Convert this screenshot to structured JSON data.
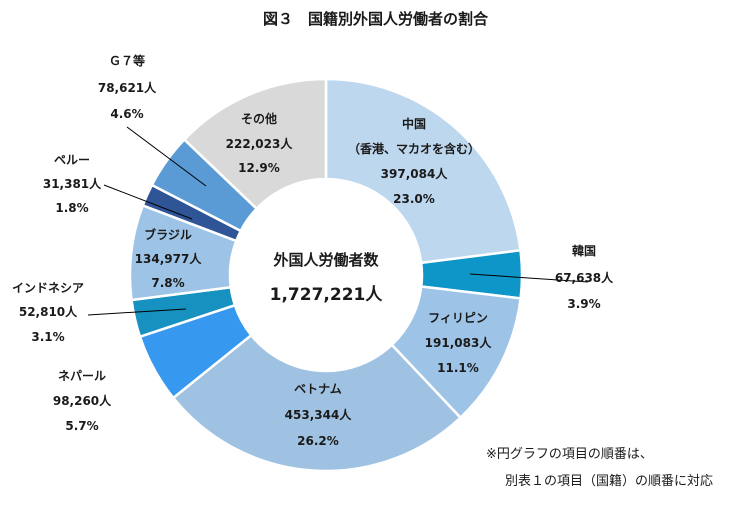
{
  "chart_data": {
    "type": "pie",
    "title": "図３　国籍別外国人労働者の割合",
    "center_label": "外国人労働者数",
    "center_total": "1,727,221人",
    "slices": [
      {
        "name": "中国",
        "name2": "（香港、マカオを含む）",
        "count": "397,084人",
        "pct": "23.0%",
        "value": 397084,
        "color": "#bdd7ee"
      },
      {
        "name": "韓国",
        "count": "67,638人",
        "pct": "3.9%",
        "value": 67638,
        "color": "#0f96c8"
      },
      {
        "name": "フィリピン",
        "count": "191,083人",
        "pct": "11.1%",
        "value": 191083,
        "color": "#9dc3e6"
      },
      {
        "name": "ベトナム",
        "count": "453,344人",
        "pct": "26.2%",
        "value": 453344,
        "color": "#9fc2e3"
      },
      {
        "name": "ネパール",
        "count": "98,260人",
        "pct": "5.7%",
        "value": 98260,
        "color": "#3798f0"
      },
      {
        "name": "インドネシア",
        "count": "52,810人",
        "pct": "3.1%",
        "value": 52810,
        "color": "#1791bf"
      },
      {
        "name": "ブラジル",
        "count": "134,977人",
        "pct": "7.8%",
        "value": 134977,
        "color": "#9dc3e6"
      },
      {
        "name": "ペルー",
        "count": "31,381人",
        "pct": "1.8%",
        "value": 31381,
        "color": "#2f5597"
      },
      {
        "name": "Ｇ７等",
        "count": "78,621人",
        "pct": "4.6%",
        "value": 78621,
        "color": "#5b9bd5"
      },
      {
        "name": "その他",
        "count": "222,023人",
        "pct": "12.9%",
        "value": 222023,
        "color": "#d9d9d9"
      }
    ],
    "note_line1": "※円グラフの項目の順番は、",
    "note_line2": "別表１の項目（国籍）の順番に対応"
  }
}
